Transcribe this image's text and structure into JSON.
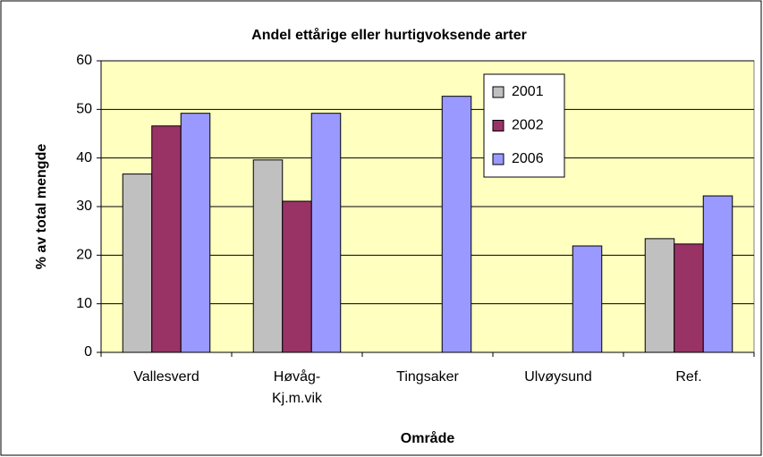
{
  "chart_data": {
    "type": "bar",
    "title": "Andel ettårige eller hurtigvoksende arter",
    "y_label": "% av total mengde",
    "x_label": "Område",
    "categories": [
      "Vallesverd",
      "Høvåg-Kj.m.vik",
      "Tingsaker",
      "Ulvøysund",
      "Ref."
    ],
    "series": [
      {
        "name": "2001",
        "color": "#c0c0c0",
        "values": [
          36.7,
          39.6,
          null,
          null,
          23.4
        ]
      },
      {
        "name": "2002",
        "color": "#993366",
        "values": [
          46.6,
          31.1,
          null,
          null,
          22.3
        ]
      },
      {
        "name": "2006",
        "color": "#9999ff",
        "values": [
          49.2,
          49.2,
          52.7,
          21.9,
          32.2
        ]
      }
    ],
    "ylim": [
      0,
      60
    ],
    "yticks": [
      0,
      10,
      20,
      30,
      40,
      50,
      60
    ],
    "grid": true,
    "legend": "top-right",
    "plot_background": "#ffffc0"
  }
}
